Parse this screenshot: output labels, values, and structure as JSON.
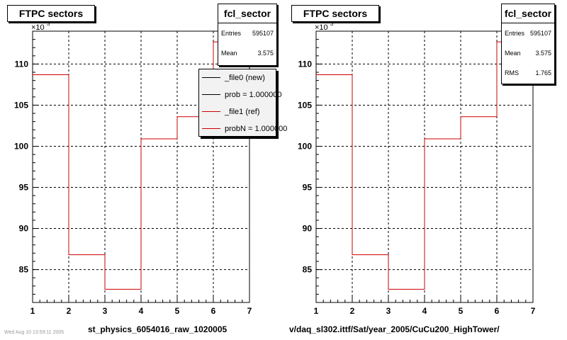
{
  "colors": {
    "line_new": "#000000",
    "line_ref": "#cc0000",
    "grid": "#000000"
  },
  "left": {
    "title": "FTPC sectors",
    "xlabel": "st_physics_6054016_raw_1020005",
    "stats": {
      "title": "fcl_sector",
      "rows": [
        {
          "key": "Entries",
          "value": "595107"
        },
        {
          "key": "Mean",
          "value": "3.575"
        }
      ]
    },
    "legend": [
      {
        "text": "_file0 (new)",
        "color": "#000000"
      },
      {
        "text": "prob = 1.000000",
        "color": "#000000"
      },
      {
        "text": "_file1 (ref)",
        "color": "#cc0000"
      },
      {
        "text": "probN = 1.000000",
        "color": "#cc0000"
      }
    ]
  },
  "right": {
    "title": "FTPC sectors",
    "xlabel": "v/daq_sl302.ittf/Sat/year_2005/CuCu200_HighTower/",
    "stats": {
      "title": "fcl_sector",
      "rows": [
        {
          "key": "Entries",
          "value": "595107"
        },
        {
          "key": "Mean",
          "value": "3.575"
        },
        {
          "key": "RMS",
          "value": "1.765"
        }
      ]
    }
  },
  "footer": "Wed Aug 10 13:59:11 2005",
  "chart_data": [
    {
      "type": "line",
      "title": "FTPC sectors",
      "xlabel": "st_physics_6054016_raw_1020005",
      "ylabel": "",
      "y_multiplier": "×10^3",
      "xlim": [
        1,
        7
      ],
      "ylim": [
        81,
        114
      ],
      "x_ticks": [
        1,
        2,
        3,
        4,
        5,
        6,
        7
      ],
      "y_ticks": [
        85,
        90,
        95,
        100,
        105,
        110
      ],
      "grid": true,
      "bin_edges": [
        1,
        2,
        3,
        4,
        5,
        6,
        7
      ],
      "series": [
        {
          "name": "_file1 (ref)",
          "values": [
            108.7,
            86.8,
            82.6,
            100.9,
            103.6,
            112.7
          ]
        }
      ]
    },
    {
      "type": "line",
      "title": "FTPC sectors",
      "xlabel": "v/daq_sl302.ittf/Sat/year_2005/CuCu200_HighTower/",
      "ylabel": "",
      "y_multiplier": "×10^3",
      "xlim": [
        1,
        7
      ],
      "ylim": [
        81,
        114
      ],
      "x_ticks": [
        1,
        2,
        3,
        4,
        5,
        6,
        7
      ],
      "y_ticks": [
        85,
        90,
        95,
        100,
        105,
        110
      ],
      "grid": true,
      "bin_edges": [
        1,
        2,
        3,
        4,
        5,
        6,
        7
      ],
      "series": [
        {
          "values": [
            108.7,
            86.8,
            82.6,
            100.9,
            103.6,
            112.7
          ]
        }
      ]
    }
  ]
}
